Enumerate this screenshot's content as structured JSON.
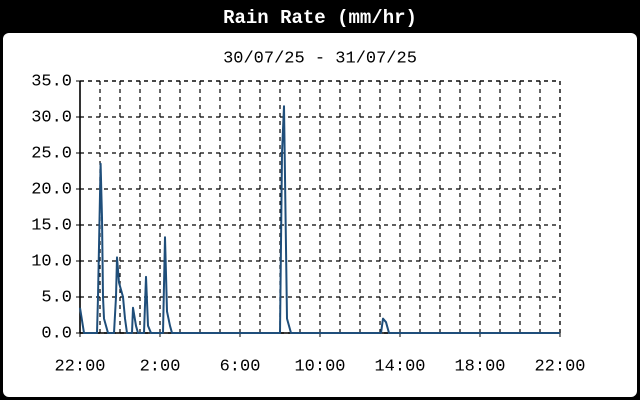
{
  "chart_data": {
    "type": "line",
    "title": "Rain Rate (mm/hr)",
    "subtitle": "30/07/25 - 31/07/25",
    "x": [
      0,
      0.2,
      0.85,
      0.9,
      0.95,
      1.03,
      1.1,
      1.15,
      1.2,
      1.4,
      1.7,
      1.8,
      1.85,
      1.95,
      2.05,
      2.15,
      2.25,
      2.35,
      2.6,
      2.65,
      2.8,
      2.9,
      3.2,
      3.3,
      3.4,
      3.55,
      4.15,
      4.25,
      4.35,
      4.5,
      4.6,
      10.0,
      10.1,
      10.2,
      10.35,
      10.55,
      15.05,
      15.15,
      15.3,
      15.45,
      24
    ],
    "series": [
      {
        "color": "#1f4e7a",
        "values": [
          3.5,
          0,
          0,
          5,
          12,
          23.5,
          16,
          5,
          2,
          0,
          0,
          5,
          10.5,
          7,
          6,
          5,
          2,
          0,
          0,
          3.5,
          1,
          0,
          0,
          7.8,
          1,
          0,
          0,
          13.3,
          3,
          1,
          0,
          0,
          25,
          31.5,
          2,
          0,
          0,
          2,
          1.5,
          0,
          0
        ]
      }
    ],
    "xlim": [
      0,
      24
    ],
    "xticks": [
      {
        "value": 0,
        "label": "22:00"
      },
      {
        "value": 4,
        "label": "2:00"
      },
      {
        "value": 8,
        "label": "6:00"
      },
      {
        "value": 12,
        "label": "10:00"
      },
      {
        "value": 16,
        "label": "14:00"
      },
      {
        "value": 20,
        "label": "18:00"
      },
      {
        "value": 24,
        "label": "22:00"
      }
    ],
    "ylim": [
      0,
      35
    ],
    "yticks": [
      {
        "value": 0,
        "label": "0.0"
      },
      {
        "value": 5,
        "label": "5.0"
      },
      {
        "value": 10,
        "label": "10.0"
      },
      {
        "value": 15,
        "label": "15.0"
      },
      {
        "value": 20,
        "label": "20.0"
      },
      {
        "value": 25,
        "label": "25.0"
      },
      {
        "value": 30,
        "label": "30.0"
      },
      {
        "value": 35,
        "label": "35.0"
      }
    ],
    "grid": true
  }
}
